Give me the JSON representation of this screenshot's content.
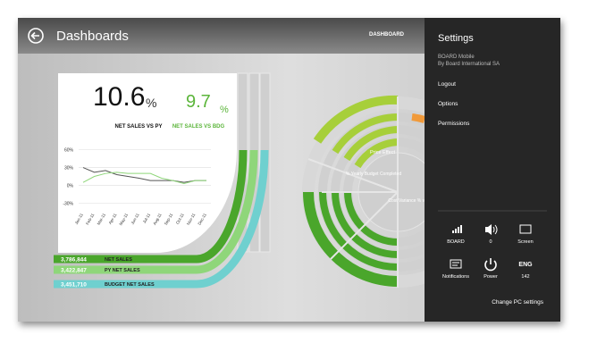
{
  "header": {
    "title": "Dashboards",
    "nav": "DASHBOARD"
  },
  "kpis": [
    {
      "value": "10.6",
      "unit": "%",
      "label": "NET SALES VS PY"
    },
    {
      "value": "9.7",
      "unit": "%",
      "label": "NET SALES VS BDG"
    }
  ],
  "chart_data": {
    "type": "line",
    "categories": [
      "Jan-11",
      "Feb-11",
      "Mar-11",
      "Apr-11",
      "May-11",
      "Jun-11",
      "Jul-11",
      "Aug-11",
      "Sep-11",
      "Oct-11",
      "Nov-11",
      "Dec-11"
    ],
    "series": [
      {
        "color": "#555555",
        "values": [
          30,
          22,
          25,
          18,
          15,
          12,
          8,
          8,
          8,
          5,
          8,
          8
        ]
      },
      {
        "color": "#8fd67a",
        "values": [
          5,
          15,
          20,
          22,
          20,
          20,
          20,
          12,
          8,
          3,
          8,
          8
        ]
      }
    ],
    "ylim": [
      -40,
      70
    ],
    "yticks": [
      {
        "value": 60,
        "label": "60%"
      },
      {
        "value": 30,
        "label": "30%"
      },
      {
        "value": 0,
        "label": "0%"
      },
      {
        "value": -30,
        "label": "-30%"
      }
    ],
    "grid": true
  },
  "totals": [
    {
      "value": "3,786,844",
      "label": "NET SALES",
      "color": "#4aa62b"
    },
    {
      "value": "3,422,847",
      "label": "PY NET SALES",
      "color": "#8fd67a"
    },
    {
      "value": "3,451,710",
      "label": "BUDGET NET SALES",
      "color": "#6fd0cf"
    }
  ],
  "radial_labels": [
    "Price Effect",
    "% Yearly Budget Completed",
    "Cost Variance % vs PY"
  ],
  "settings": {
    "title": "Settings",
    "app_name": "BOARD Mobile",
    "publisher": "By Board International SA",
    "menu": [
      "Logout",
      "Options",
      "Permissions"
    ],
    "tiles": [
      {
        "label": "BOARD"
      },
      {
        "label": "0"
      },
      {
        "label": "Screen"
      },
      {
        "label": "Notifications"
      },
      {
        "label": "Power"
      },
      {
        "icon": "ENG",
        "label": "142"
      }
    ],
    "footer": "Change PC settings"
  }
}
